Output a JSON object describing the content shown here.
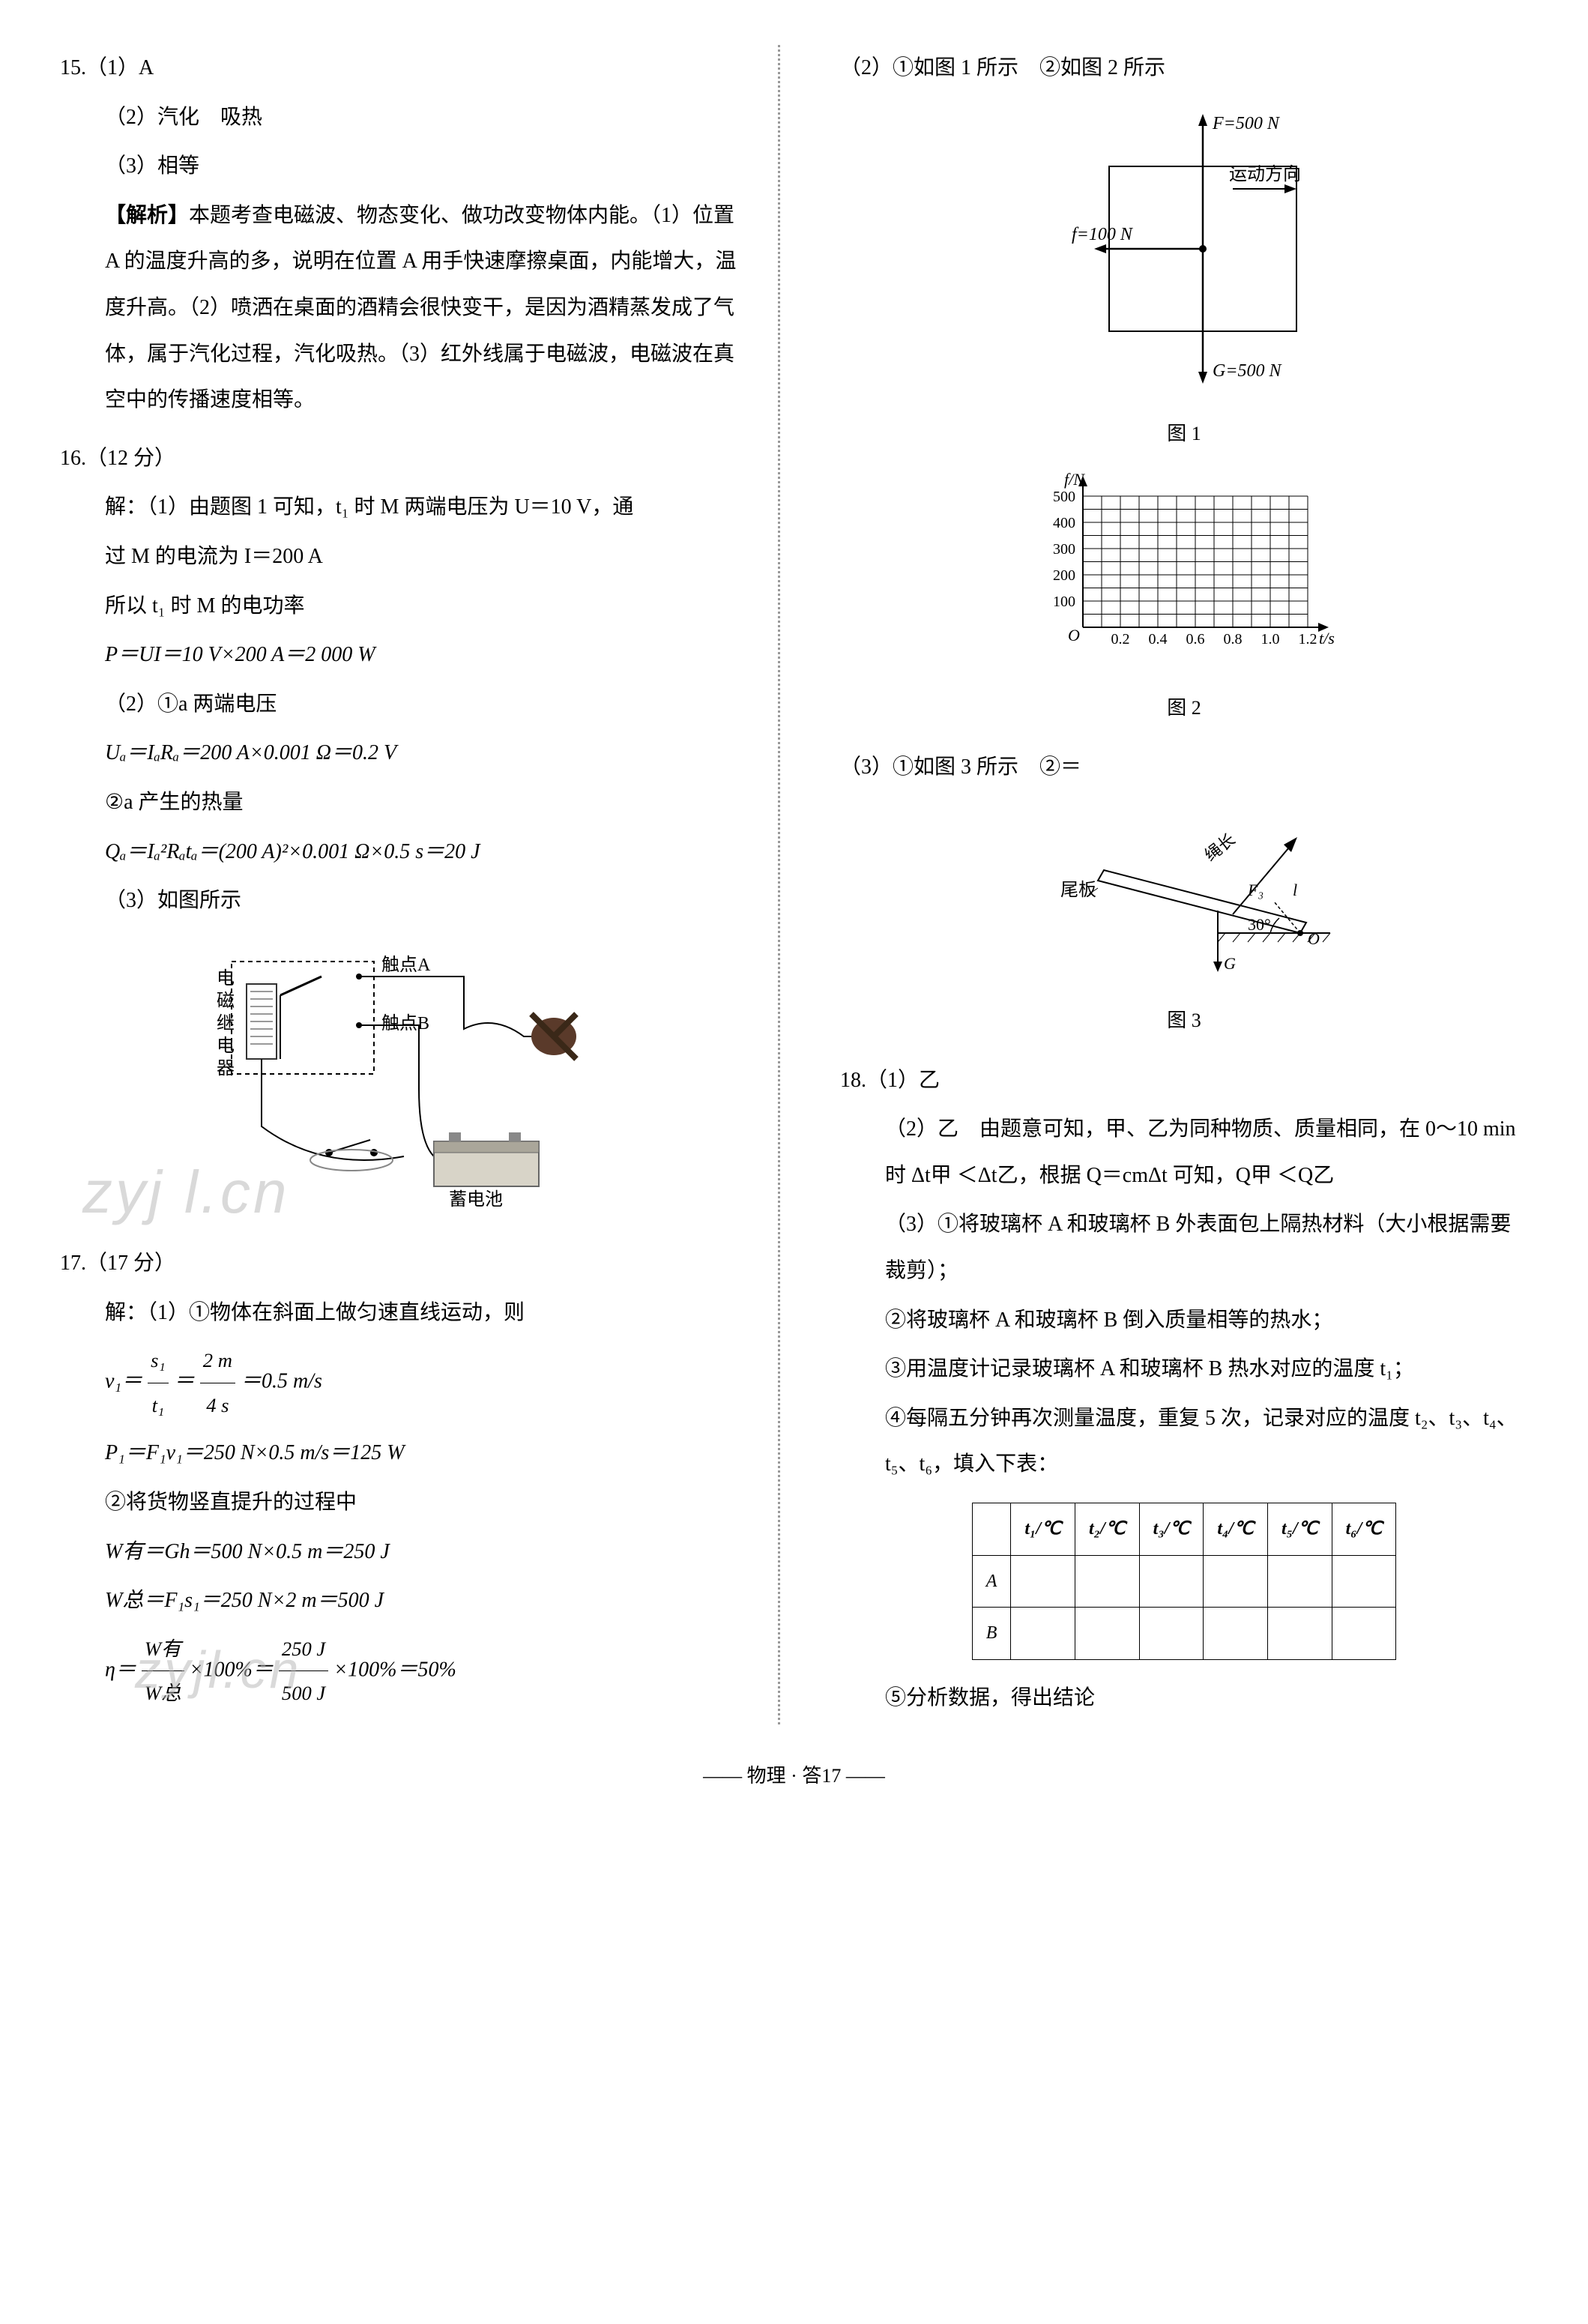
{
  "left": {
    "q15": {
      "num": "15.",
      "a1": "（1）A",
      "a2": "（2）汽化　吸热",
      "a3": "（3）相等",
      "explain_label": "【解析】",
      "explain": "本题考查电磁波、物态变化、做功改变物体内能。（1）位置 A 的温度升高的多，说明在位置 A 用手快速摩擦桌面，内能增大，温度升高。（2）喷洒在桌面的酒精会很快变干，是因为酒精蒸发成了气体，属于汽化过程，汽化吸热。（3）红外线属于电磁波，电磁波在真空中的传播速度相等。"
    },
    "q16": {
      "num": "16.",
      "points": "（12 分）",
      "l1": "解：（1）由题图 1 可知，t₁ 时 M 两端电压为 U＝10 V，通",
      "l2": "过 M 的电流为 I＝200 A",
      "l3": "所以 t₁ 时 M 的电功率",
      "l4": "P＝UI＝10 V×200 A＝2 000 W",
      "l5": "（2）①a 两端电压",
      "l6": "Uₐ＝IₐRₐ＝200 A×0.001 Ω＝0.2 V",
      "l7": "②a 产生的热量",
      "l8": "Qₐ＝Iₐ²Rₐtₐ＝(200 A)²×0.001 Ω×0.5 s＝20 J",
      "l9": "（3）如图所示",
      "circuit_labels": {
        "relay": "电磁继电器",
        "contactA": "触点A",
        "contactB": "触点B",
        "battery": "蓄电池"
      }
    },
    "q17": {
      "num": "17.",
      "points": "（17 分）",
      "l1": "解：（1）①物体在斜面上做匀速直线运动，则",
      "v1_lhs": "v₁＝",
      "v1_frac_num": "s₁",
      "v1_frac_den": "t₁",
      "v1_eq": "＝",
      "v1_frac2_num": "2 m",
      "v1_frac2_den": "4 s",
      "v1_rhs": "＝0.5 m/s",
      "l3": "P₁＝F₁v₁＝250 N×0.5 m/s＝125 W",
      "l4": "②将货物竖直提升的过程中",
      "l5": "W有＝Gh＝500 N×0.5 m＝250 J",
      "l6": "W总＝F₁s₁＝250 N×2 m＝500 J",
      "eta_lhs": "η＝",
      "eta_f1n": "W有",
      "eta_f1d": "W总",
      "eta_mid": "×100%＝",
      "eta_f2n": "250 J",
      "eta_f2d": "500 J",
      "eta_rhs": "×100%＝50%"
    },
    "watermark1": "zyj l.cn",
    "watermark2": "zyjl.cn"
  },
  "right": {
    "q17_2": {
      "head": "（2）①如图 1 所示　②如图 2 所示",
      "fig1": {
        "F_label": "F=500 N",
        "f_label": "f=100 N",
        "G_label": "G=500 N",
        "dir_label": "运动方向",
        "caption": "图 1",
        "box_color": "#000000",
        "bg": "#ffffff"
      },
      "fig2": {
        "caption": "图 2",
        "ylabel": "f/N",
        "xlabel": "t/s",
        "yticks": [
          100,
          200,
          300,
          400,
          500
        ],
        "xticks": [
          "0.2",
          "0.4",
          "0.6",
          "0.8",
          "1.0",
          "1.2"
        ],
        "origin": "O",
        "grid_color": "#000000",
        "bg": "#ffffff"
      },
      "l3": "（3）①如图 3 所示　②＝",
      "fig3": {
        "caption": "图 3",
        "tail": "尾板",
        "rope": "绳长",
        "F3": "F₃",
        "angle": "30°",
        "G": "G",
        "O": "O",
        "l": "l"
      }
    },
    "q18": {
      "num": "18.",
      "a1": "（1）乙",
      "a2": "（2）乙　由题意可知，甲、乙为同种物质、质量相同，在 0～10 min 时 Δt甲 ＜Δt乙，根据 Q＝cmΔt 可知，Q甲 ＜Q乙",
      "a3": "（3）①将玻璃杯 A 和玻璃杯 B 外表面包上隔热材料（大小根据需要裁剪）；",
      "a4": "②将玻璃杯 A 和玻璃杯 B 倒入质量相等的热水；",
      "a5": "③用温度计记录玻璃杯 A 和玻璃杯 B 热水对应的温度 t₁；",
      "a6": "④每隔五分钟再次测量温度，重复 5 次，记录对应的温度 t₂、t₃、t₄、t₅、t₆，填入下表：",
      "table": {
        "cols": [
          "t₁/℃",
          "t₂/℃",
          "t₃/℃",
          "t₄/℃",
          "t₅/℃",
          "t₆/℃"
        ],
        "rows": [
          "A",
          "B"
        ]
      },
      "a7": "⑤分析数据，得出结论"
    }
  },
  "footer": "—— 物理 · 答17 ——"
}
